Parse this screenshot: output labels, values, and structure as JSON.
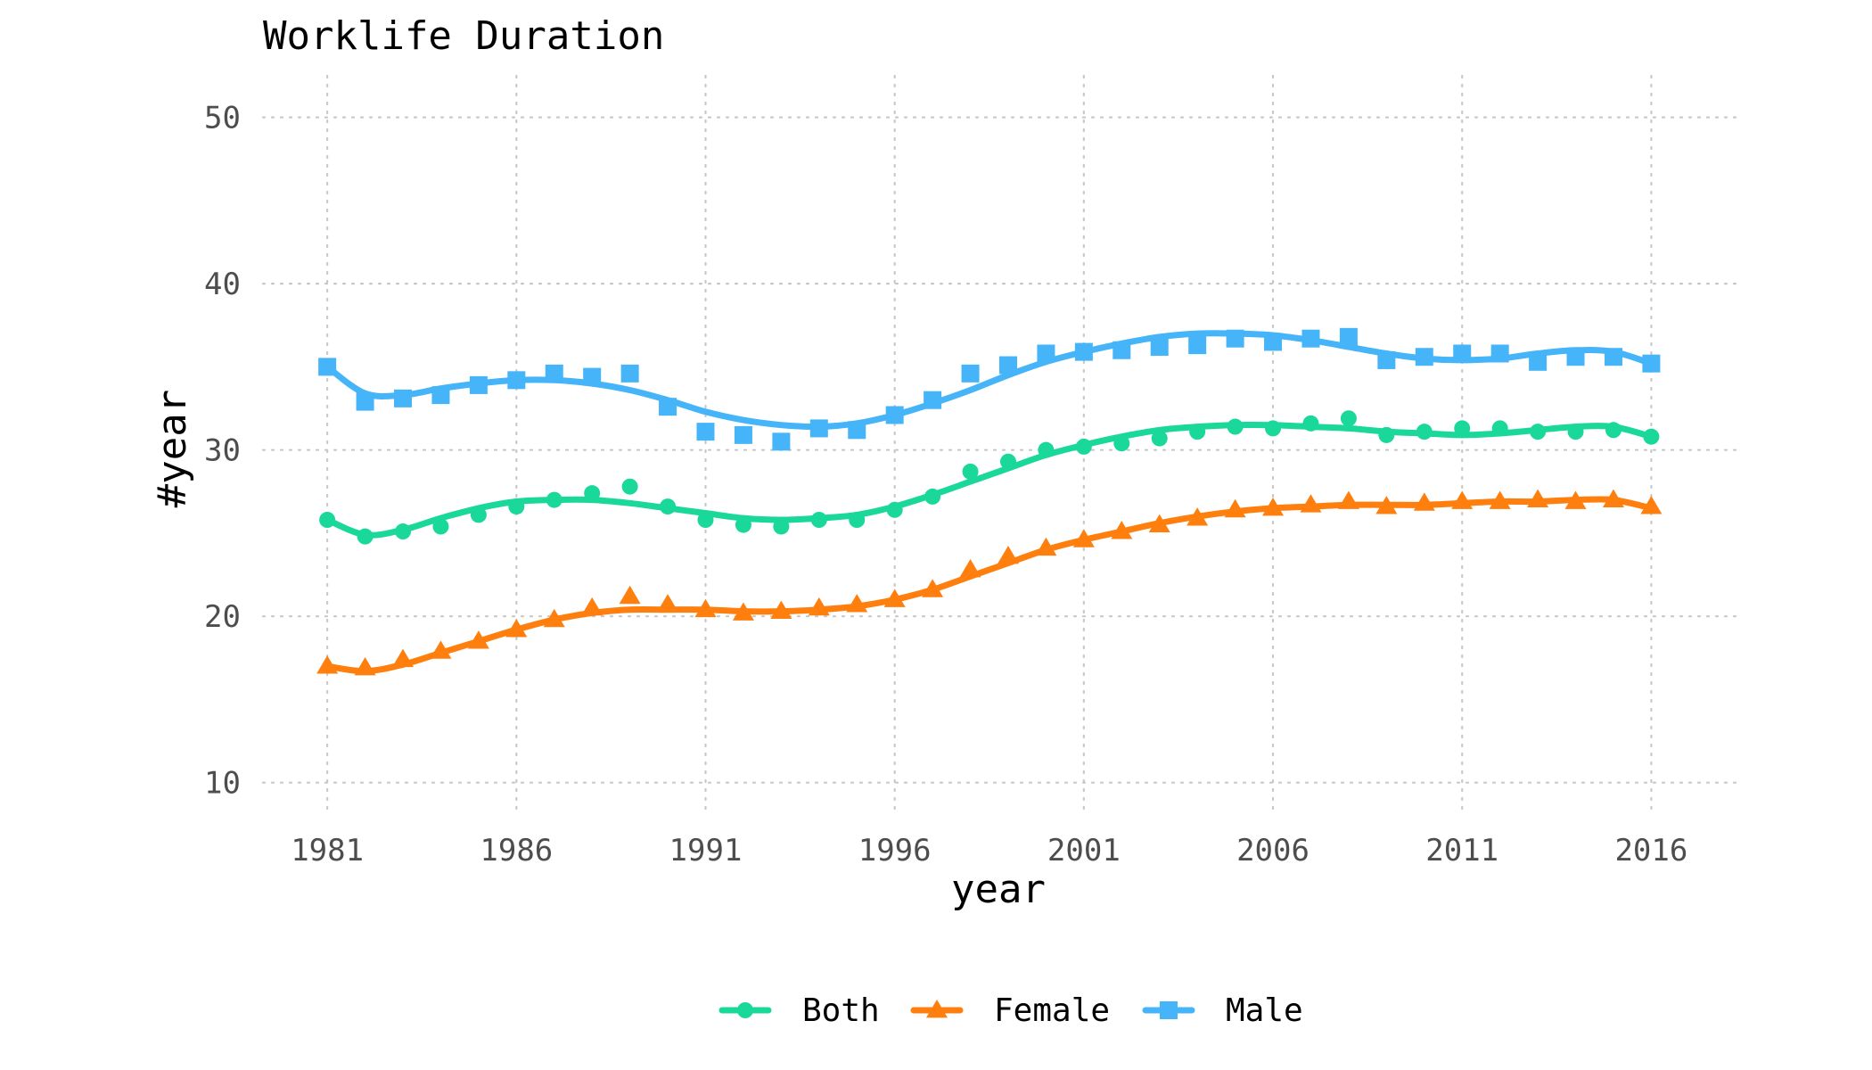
{
  "chart_data": {
    "type": "line",
    "title": "Worklife Duration",
    "xlabel": "year",
    "ylabel": "#year",
    "xlim": [
      1979.3,
      2018.3
    ],
    "ylim": [
      8,
      52.5
    ],
    "x_ticks": [
      1981,
      1986,
      1991,
      1996,
      2001,
      2006,
      2011,
      2016
    ],
    "y_ticks": [
      10,
      20,
      30,
      40,
      50
    ],
    "grid": true,
    "legend": "bottom",
    "series": [
      {
        "name": "Both",
        "color": "#1ad89a",
        "marker": "circle",
        "x": [
          1981,
          1982,
          1983,
          1984,
          1985,
          1986,
          1987,
          1988,
          1989,
          1990,
          1991,
          1992,
          1993,
          1994,
          1995,
          1996,
          1997,
          1998,
          1999,
          2000,
          2001,
          2002,
          2003,
          2004,
          2005,
          2006,
          2007,
          2008,
          2009,
          2010,
          2011,
          2012,
          2013,
          2014,
          2015,
          2016
        ],
        "values": [
          25.8,
          24.8,
          25.1,
          25.4,
          26.1,
          26.6,
          27.0,
          27.4,
          27.8,
          26.6,
          25.8,
          25.5,
          25.4,
          25.8,
          25.8,
          26.4,
          27.2,
          28.7,
          29.3,
          30.0,
          30.2,
          30.4,
          30.7,
          31.1,
          31.4,
          31.3,
          31.6,
          31.9,
          30.9,
          31.1,
          31.3,
          31.3,
          31.1,
          31.1,
          31.2,
          30.8
        ],
        "trend": [
          25.8,
          24.9,
          25.2,
          25.9,
          26.5,
          26.9,
          27.0,
          27.0,
          26.8,
          26.5,
          26.2,
          25.9,
          25.8,
          25.9,
          26.1,
          26.6,
          27.3,
          28.1,
          28.9,
          29.7,
          30.3,
          30.8,
          31.2,
          31.4,
          31.5,
          31.5,
          31.4,
          31.3,
          31.1,
          31.0,
          30.9,
          31.0,
          31.2,
          31.4,
          31.4,
          30.8
        ]
      },
      {
        "name": "Female",
        "color": "#ff7f0e",
        "marker": "triangle",
        "x": [
          1981,
          1982,
          1983,
          1984,
          1985,
          1986,
          1987,
          1988,
          1989,
          1990,
          1991,
          1992,
          1993,
          1994,
          1995,
          1996,
          1997,
          1998,
          1999,
          2000,
          2001,
          2002,
          2003,
          2004,
          2005,
          2006,
          2007,
          2008,
          2009,
          2010,
          2011,
          2012,
          2013,
          2014,
          2015,
          2016
        ],
        "values": [
          17.0,
          16.9,
          17.4,
          17.9,
          18.5,
          19.2,
          19.8,
          20.5,
          21.2,
          20.7,
          20.4,
          20.2,
          20.3,
          20.5,
          20.7,
          21.0,
          21.6,
          22.8,
          23.6,
          24.1,
          24.6,
          25.1,
          25.5,
          25.9,
          26.4,
          26.5,
          26.7,
          26.9,
          26.6,
          26.8,
          26.9,
          26.9,
          27.0,
          26.9,
          27.0,
          26.6
        ],
        "trend": [
          17.0,
          16.7,
          17.1,
          17.8,
          18.5,
          19.2,
          19.8,
          20.2,
          20.4,
          20.4,
          20.4,
          20.3,
          20.3,
          20.4,
          20.6,
          21.0,
          21.6,
          22.4,
          23.2,
          24.0,
          24.6,
          25.1,
          25.6,
          26.0,
          26.3,
          26.5,
          26.6,
          26.7,
          26.7,
          26.7,
          26.8,
          26.9,
          26.9,
          27.0,
          27.0,
          26.5
        ]
      },
      {
        "name": "Male",
        "color": "#45b4f8",
        "marker": "square",
        "x": [
          1981,
          1982,
          1983,
          1984,
          1985,
          1986,
          1987,
          1988,
          1989,
          1990,
          1991,
          1992,
          1993,
          1994,
          1995,
          1996,
          1997,
          1998,
          1999,
          2000,
          2001,
          2002,
          2003,
          2004,
          2005,
          2006,
          2007,
          2008,
          2009,
          2010,
          2011,
          2012,
          2013,
          2014,
          2015,
          2016
        ],
        "values": [
          35.0,
          32.9,
          33.1,
          33.3,
          33.9,
          34.2,
          34.6,
          34.4,
          34.6,
          32.6,
          31.1,
          30.9,
          30.5,
          31.3,
          31.2,
          32.1,
          33.0,
          34.6,
          35.1,
          35.8,
          35.9,
          36.0,
          36.2,
          36.3,
          36.7,
          36.5,
          36.7,
          36.8,
          35.4,
          35.6,
          35.8,
          35.8,
          35.3,
          35.6,
          35.6,
          35.2
        ],
        "trend": [
          35.0,
          33.4,
          33.3,
          33.7,
          34.0,
          34.2,
          34.2,
          34.0,
          33.6,
          33.0,
          32.3,
          31.8,
          31.5,
          31.4,
          31.6,
          32.1,
          32.8,
          33.6,
          34.5,
          35.3,
          35.9,
          36.4,
          36.8,
          37.0,
          37.0,
          36.9,
          36.6,
          36.2,
          35.8,
          35.5,
          35.4,
          35.5,
          35.8,
          36.0,
          35.9,
          35.2
        ]
      }
    ]
  }
}
